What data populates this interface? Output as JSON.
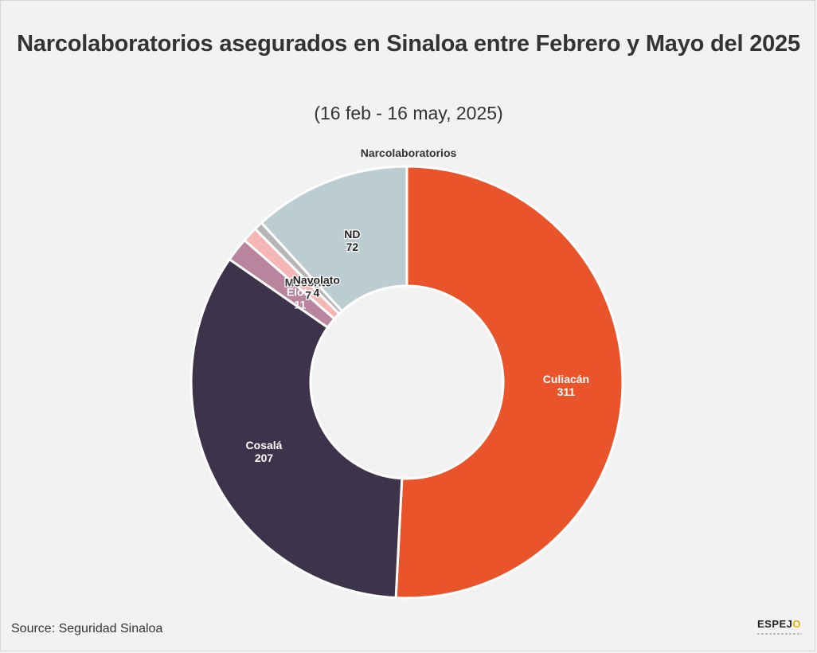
{
  "chart_data": {
    "type": "pie",
    "title": "Narcolaboratorios asegurados en Sinaloa entre Febrero y Mayo del 2025",
    "subtitle": "(16 feb - 16 may, 2025)",
    "series_name": "Narcolaboratorios",
    "categories": [
      "Culiacán",
      "Cosalá",
      "Elota",
      "Mocorito",
      "Navolato",
      "ND"
    ],
    "values": [
      311,
      207,
      11,
      7,
      4,
      72
    ],
    "colors": [
      "#ea542b",
      "#3d334a",
      "#b8849e",
      "#f5b7b3",
      "#b5b5b5",
      "#bccdd1"
    ],
    "donut": true,
    "legend": "none"
  },
  "source": "Source: Seguridad Sinaloa",
  "logo": {
    "text": "ESPEJ",
    "accent": "O"
  }
}
